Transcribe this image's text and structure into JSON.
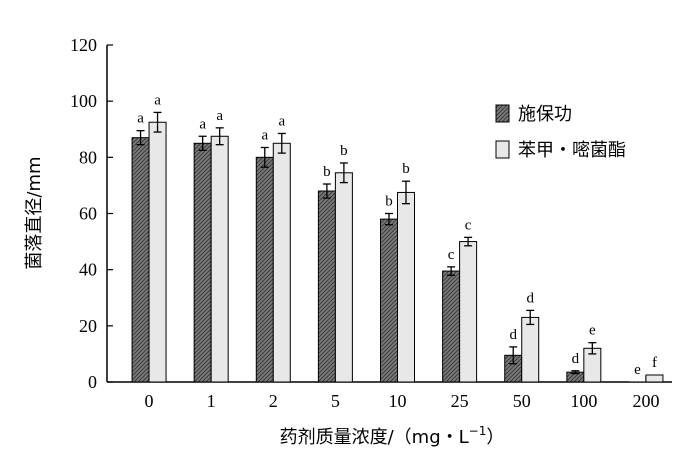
{
  "chart_data": {
    "type": "bar",
    "xlabel_main": "药剂质量浓度/（mg・L",
    "xlabel_sup": "−1",
    "xlabel_close": "）",
    "ylabel": "菌落直径/mm",
    "ylim": [
      0,
      120
    ],
    "yticks": [
      "0",
      "20",
      "40",
      "60",
      "80",
      "100",
      "120"
    ],
    "categories": [
      "0",
      "1",
      "2",
      "5",
      "10",
      "25",
      "50",
      "100",
      "200"
    ],
    "legend_position": "right",
    "series": [
      {
        "name": "施保功",
        "color": "#8c8c8c",
        "pattern": "hatched-dark",
        "values": [
          87,
          85,
          80,
          68,
          58,
          39.5,
          9.5,
          3.5,
          0
        ],
        "errors": [
          2.5,
          2.5,
          3.5,
          2.5,
          2,
          1.5,
          3,
          0.5,
          0
        ],
        "labels": [
          "a",
          "a",
          "a",
          "b",
          "b",
          "c",
          "d",
          "d",
          "e"
        ]
      },
      {
        "name": "苯甲・嘧菌酯",
        "color": "#e8e8e8",
        "pattern": "light",
        "values": [
          92.5,
          87.5,
          85,
          74.5,
          67.5,
          50,
          23,
          12,
          2.5
        ],
        "errors": [
          3.5,
          3,
          3.5,
          3.5,
          4,
          1.5,
          2.5,
          2,
          0
        ],
        "labels": [
          "a",
          "a",
          "a",
          "b",
          "b",
          "c",
          "d",
          "e",
          "f"
        ]
      }
    ]
  }
}
